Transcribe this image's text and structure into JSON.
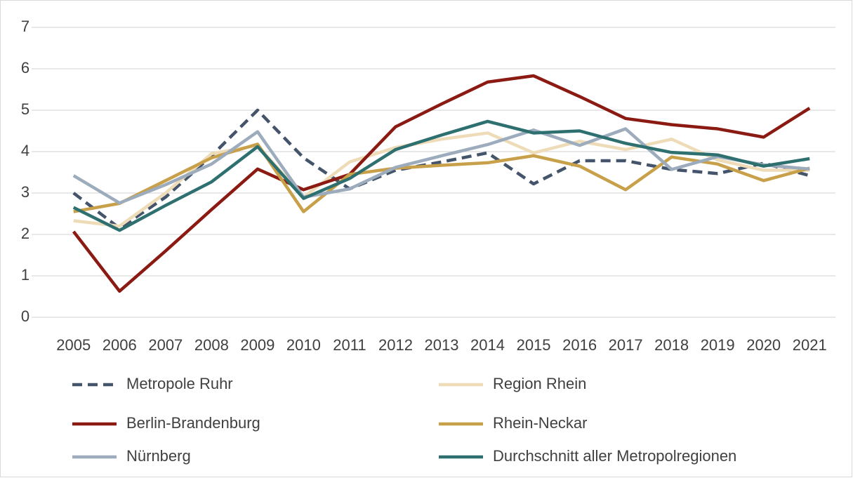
{
  "chart_data": {
    "type": "line",
    "categories": [
      "2005",
      "2006",
      "2007",
      "2008",
      "2009",
      "2010",
      "2011",
      "2012",
      "2013",
      "2014",
      "2015",
      "2016",
      "2017",
      "2018",
      "2019",
      "2020",
      "2021"
    ],
    "ylim": [
      0,
      7
    ],
    "yticks": [
      0,
      1,
      2,
      3,
      4,
      5,
      6,
      7
    ],
    "grid": true,
    "legend": "bottom",
    "series": [
      {
        "name": "Metropole Ruhr",
        "color": "#44546a",
        "line_style": "dashed",
        "values": [
          3.0,
          2.15,
          2.9,
          3.9,
          5.0,
          3.85,
          3.1,
          3.55,
          3.75,
          3.97,
          3.22,
          3.78,
          3.78,
          3.57,
          3.47,
          3.72,
          3.42
        ]
      },
      {
        "name": "Region Rhein",
        "color": "#eedcb8",
        "line_style": "solid",
        "values": [
          2.33,
          2.2,
          3.0,
          3.95,
          4.15,
          2.9,
          3.75,
          4.1,
          4.3,
          4.45,
          3.97,
          4.25,
          4.05,
          4.3,
          3.8,
          3.55,
          3.55
        ]
      },
      {
        "name": "Berlin-Brandenburg",
        "color": "#8b1a12",
        "line_style": "solid",
        "values": [
          2.07,
          0.63,
          1.6,
          2.6,
          3.58,
          3.08,
          3.45,
          4.6,
          5.15,
          5.68,
          5.83,
          5.33,
          4.8,
          4.65,
          4.55,
          4.35,
          5.05
        ]
      },
      {
        "name": "Rhein-Neckar",
        "color": "#c8a04a",
        "line_style": "solid",
        "values": [
          2.55,
          2.75,
          3.3,
          3.85,
          4.18,
          2.55,
          3.45,
          3.6,
          3.67,
          3.73,
          3.9,
          3.65,
          3.08,
          3.87,
          3.7,
          3.3,
          3.6
        ]
      },
      {
        "name": "Nürnberg",
        "color": "#9cacbd",
        "line_style": "solid",
        "values": [
          3.42,
          2.76,
          3.2,
          3.7,
          4.48,
          2.9,
          3.1,
          3.62,
          3.9,
          4.17,
          4.52,
          4.15,
          4.55,
          3.57,
          3.88,
          3.68,
          3.58
        ]
      },
      {
        "name": "Durchschnitt aller Metropolregionen",
        "color": "#2e7070",
        "line_style": "solid",
        "values": [
          2.65,
          2.1,
          2.7,
          3.27,
          4.12,
          2.87,
          3.35,
          4.05,
          4.4,
          4.73,
          4.45,
          4.5,
          4.2,
          3.98,
          3.92,
          3.65,
          3.83
        ]
      }
    ]
  }
}
